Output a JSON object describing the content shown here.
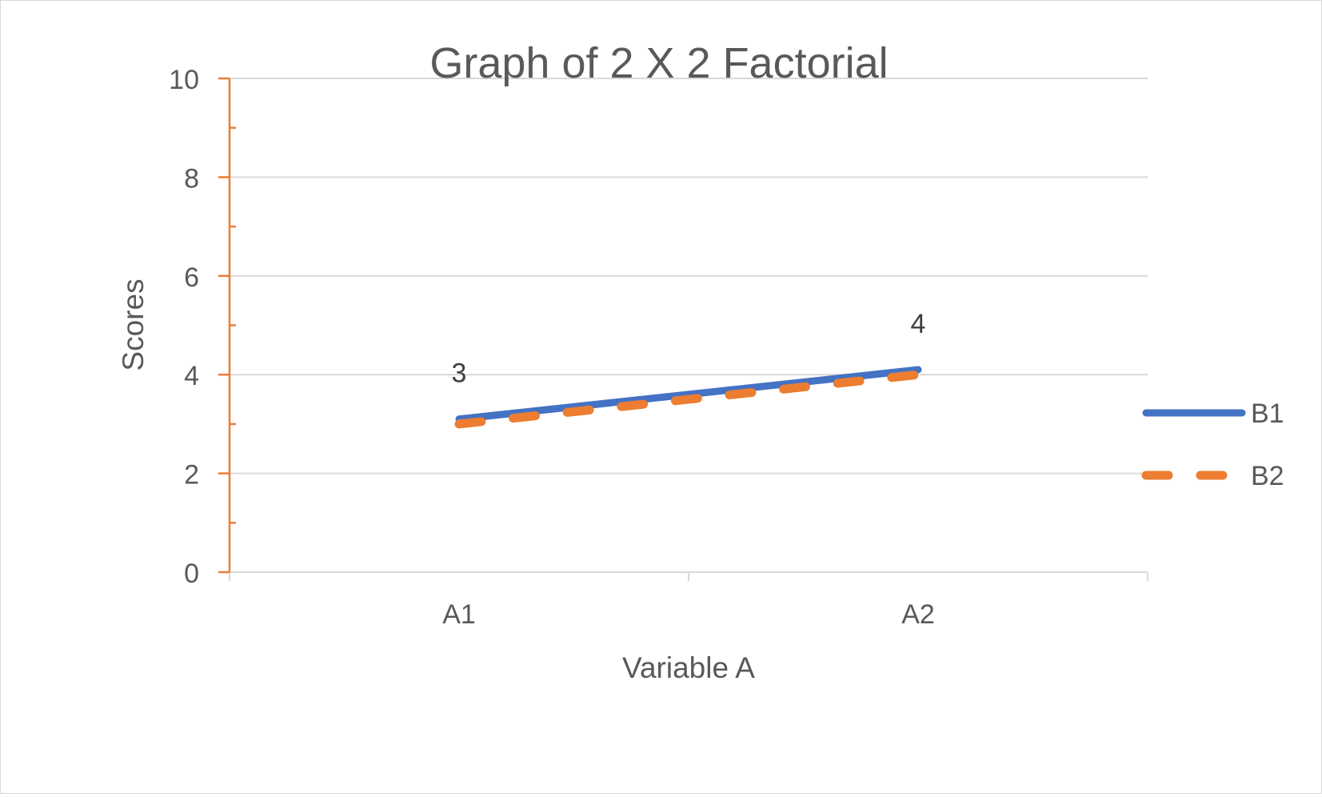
{
  "chart_data": {
    "type": "line",
    "title": "Graph of 2 X 2 Factorial",
    "xlabel": "Variable A",
    "ylabel": "Scores",
    "categories": [
      "A1",
      "A2"
    ],
    "ylim": [
      0,
      10
    ],
    "yticks": [
      0,
      2,
      4,
      6,
      8,
      10
    ],
    "grid": true,
    "legend": "right",
    "series": [
      {
        "name": "B1",
        "values": [
          3.1,
          4.1
        ],
        "color": "#4472c4",
        "dash": "solid",
        "data_labels": [
          "3",
          "4"
        ]
      },
      {
        "name": "B2",
        "values": [
          3.0,
          4.0
        ],
        "color": "#ed7d31",
        "dash": "dashed"
      }
    ],
    "colors": {
      "axis": "#ed7d31",
      "gridline": "#d9d9d9",
      "text": "#595959"
    }
  }
}
